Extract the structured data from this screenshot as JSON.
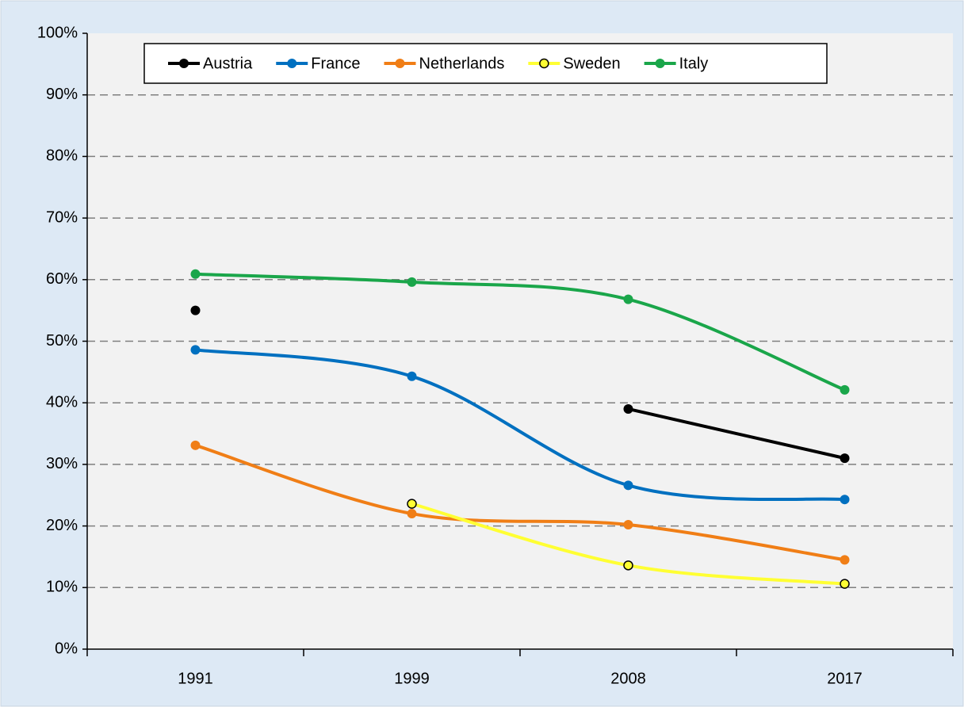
{
  "chart_data": {
    "type": "line",
    "categories": [
      "1991",
      "1999",
      "2008",
      "2017"
    ],
    "series": [
      {
        "name": "Austria",
        "color": "#000000",
        "values": [
          55,
          null,
          39,
          31
        ]
      },
      {
        "name": "France",
        "color": "#0070c0",
        "values": [
          48.6,
          44.3,
          26.6,
          24.3
        ]
      },
      {
        "name": "Netherlands",
        "color": "#f07e16",
        "values": [
          33.1,
          22.0,
          20.2,
          14.5
        ]
      },
      {
        "name": "Sweden",
        "color": "#ffff33",
        "values": [
          null,
          23.6,
          13.6,
          10.6
        ]
      },
      {
        "name": "Italy",
        "color": "#1aa64a",
        "values": [
          60.9,
          59.6,
          56.8,
          42.1
        ]
      }
    ],
    "ylim": [
      0,
      100
    ],
    "yticks": [
      {
        "value": 0,
        "label": "0%"
      },
      {
        "value": 10,
        "label": "10%"
      },
      {
        "value": 20,
        "label": "20%"
      },
      {
        "value": 30,
        "label": "30%"
      },
      {
        "value": 40,
        "label": "40%"
      },
      {
        "value": 50,
        "label": "50%"
      },
      {
        "value": 60,
        "label": "60%"
      },
      {
        "value": 70,
        "label": "70%"
      },
      {
        "value": 80,
        "label": "80%"
      },
      {
        "value": 90,
        "label": "90%"
      },
      {
        "value": 100,
        "label": "100%"
      }
    ],
    "grid": true,
    "smooth": true,
    "legend": "top"
  }
}
